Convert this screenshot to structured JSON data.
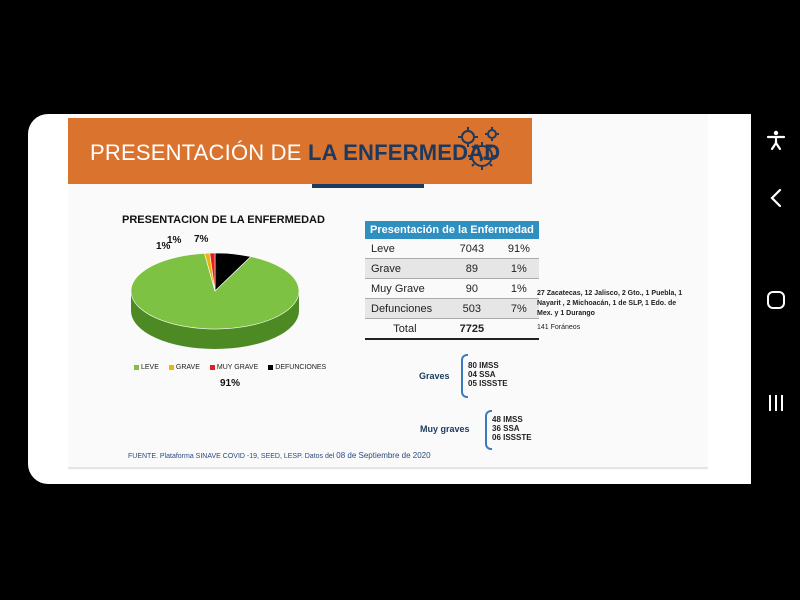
{
  "slide": {
    "title_part1": "PRESENTACIÓN DE ",
    "title_part2": "LA ENFERMEDAD",
    "chart_title": "PRESENTACION DE LA ENFERMEDAD",
    "pie_labels": {
      "leve": "91%",
      "grave": "1%",
      "muy_grave": "1%",
      "defunciones": "7%"
    },
    "legend": [
      "LEVE",
      "GRAVE",
      "MUY GRAVE",
      "DEFUNCIONES"
    ],
    "table": {
      "header": "Presentación de la Enfermedad",
      "rows": [
        {
          "label": "Leve",
          "count": "7043",
          "pct": "91%"
        },
        {
          "label": "Grave",
          "count": "89",
          "pct": "1%"
        },
        {
          "label": "Muy Grave",
          "count": "90",
          "pct": "1%"
        },
        {
          "label": "Defunciones",
          "count": "503",
          "pct": "7%"
        }
      ],
      "total_label": "Total",
      "total_value": "7725"
    },
    "note": "27 Zacatecas, 12 Jalisco, 2 Gto., 1 Puebla, 1 Nayarit , 2 Michoacán, 1 de SLP, 1 Edo. de Mex. y 1 Durango",
    "foraneos": "141 Foráneos",
    "graves": {
      "label": "Graves",
      "items": [
        "80 IMSS",
        "04 SSA",
        "05 ISSSTE"
      ]
    },
    "muy_graves": {
      "label": "Muy graves",
      "items": [
        "48 IMSS",
        "36 SSA",
        "06 ISSSTE"
      ]
    },
    "fuente_prefix": "FUENTE. Plataforma SINAVE COVID -19, SEED, LESP. Datos del ",
    "fuente_date": "08 de Septiembre de 2020"
  },
  "colors": {
    "banner": "#d9732e",
    "navy": "#1d3a5e",
    "leve": "#7dc242",
    "grave": "#f2b20c",
    "muy_grave": "#e02020",
    "defunciones": "#000000",
    "table_header": "#2f8fc0"
  },
  "icons": [
    "virus-icon",
    "accessibility-icon",
    "back-icon",
    "home-icon",
    "recents-icon"
  ],
  "chart_data": {
    "type": "pie",
    "title": "PRESENTACION DE LA ENFERMEDAD",
    "categories": [
      "LEVE",
      "GRAVE",
      "MUY GRAVE",
      "DEFUNCIONES"
    ],
    "values": [
      91,
      1,
      1,
      7
    ],
    "legend_position": "bottom"
  }
}
